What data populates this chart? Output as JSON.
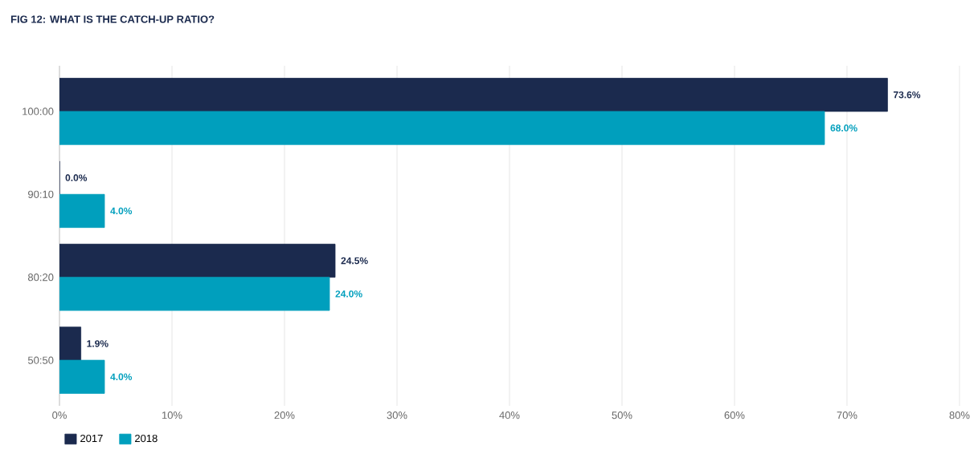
{
  "chart_data": {
    "type": "bar",
    "orientation": "horizontal",
    "title": "FIG 12: WHAT IS THE CATCH-UP RATIO?",
    "categories": [
      "100:00",
      "90:10",
      "80:20",
      "50:50"
    ],
    "series": [
      {
        "name": "2017",
        "color": "#1b2a4e",
        "values": [
          73.6,
          0.0,
          24.5,
          1.9
        ],
        "value_labels": [
          "73.6%",
          "0.0%",
          "24.5%",
          "1.9%"
        ]
      },
      {
        "name": "2018",
        "color": "#009fbd",
        "values": [
          68.0,
          4.0,
          24.0,
          4.0
        ],
        "value_labels": [
          "68.0%",
          "4.0%",
          "24.0%",
          "4.0%"
        ]
      }
    ],
    "xlim": [
      0,
      80
    ],
    "xticks": [
      {
        "value": 0,
        "label": "0%"
      },
      {
        "value": 10,
        "label": "10%"
      },
      {
        "value": 20,
        "label": "20%"
      },
      {
        "value": 30,
        "label": "30%"
      },
      {
        "value": 40,
        "label": "40%"
      },
      {
        "value": 50,
        "label": "50%"
      },
      {
        "value": 60,
        "label": "60%"
      },
      {
        "value": 70,
        "label": "70%"
      },
      {
        "value": 80,
        "label": "80%"
      }
    ],
    "grid": "x",
    "legend": "bottom left"
  }
}
